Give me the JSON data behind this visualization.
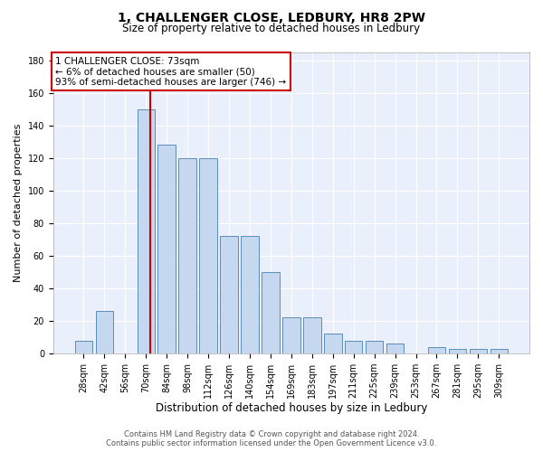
{
  "title1": "1, CHALLENGER CLOSE, LEDBURY, HR8 2PW",
  "title2": "Size of property relative to detached houses in Ledbury",
  "xlabel": "Distribution of detached houses by size in Ledbury",
  "ylabel": "Number of detached properties",
  "categories": [
    "28sqm",
    "42sqm",
    "56sqm",
    "70sqm",
    "84sqm",
    "98sqm",
    "112sqm",
    "126sqm",
    "140sqm",
    "154sqm",
    "169sqm",
    "183sqm",
    "197sqm",
    "211sqm",
    "225sqm",
    "239sqm",
    "253sqm",
    "267sqm",
    "281sqm",
    "295sqm",
    "309sqm"
  ],
  "values": [
    8,
    26,
    0,
    150,
    128,
    120,
    120,
    72,
    72,
    50,
    22,
    22,
    12,
    8,
    8,
    6,
    0,
    4,
    3,
    3,
    3
  ],
  "bar_color": "#c5d8f0",
  "bar_edge_color": "#5b8db8",
  "vline_color": "#cc0000",
  "vline_pos": 3.22,
  "ylim": [
    0,
    185
  ],
  "yticks": [
    0,
    20,
    40,
    60,
    80,
    100,
    120,
    140,
    160,
    180
  ],
  "annotation_text": "1 CHALLENGER CLOSE: 73sqm\n← 6% of detached houses are smaller (50)\n93% of semi-detached houses are larger (746) →",
  "footer1": "Contains HM Land Registry data © Crown copyright and database right 2024.",
  "footer2": "Contains public sector information licensed under the Open Government Licence v3.0.",
  "plot_bg": "#eaf0fb",
  "fig_bg": "#ffffff",
  "title1_fontsize": 10,
  "title2_fontsize": 8.5,
  "ylabel_fontsize": 8,
  "xlabel_fontsize": 8.5,
  "tick_fontsize": 7,
  "footer_fontsize": 6,
  "ann_fontsize": 7.5
}
